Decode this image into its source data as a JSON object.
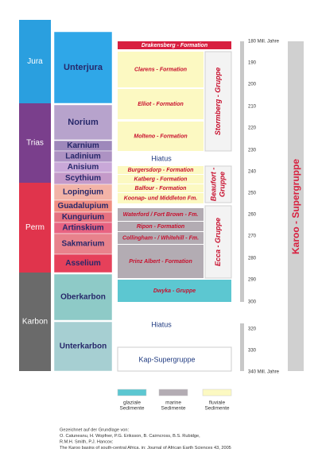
{
  "periods": [
    "Jura",
    "Trias",
    "Perm",
    "Karbon"
  ],
  "stages": [
    "Unterjura",
    "Norium",
    "Karnium",
    "Ladinium",
    "Anisium",
    "Scythium",
    "Lopingium",
    "Guadalupium",
    "Kungurium",
    "Artinskium",
    "Sakmarium",
    "Asselium",
    "Oberkarbon",
    "Unterkarbon"
  ],
  "formations": [
    "Drakensberg - Formation",
    "Clarens - Formation",
    "Elliot - Formation",
    "Molteno - Formation",
    "Burgersdorp - Formation",
    "Katberg - Formation",
    "Balfour - Formation",
    "Koonap- und Middleton Fm.",
    "Waterford / Fort Brown - Fm.",
    "Ripon - Formation",
    "Collingham - / Whitehill - Fm.",
    "Prinz Albert - Formation",
    "Dwyka - Gruppe"
  ],
  "groups": [
    [
      "Stormberg - Gruppe"
    ],
    [
      "Beaufort -",
      "Gruppe"
    ],
    [
      "Ecca - Gruppe"
    ]
  ],
  "hiatus": [
    "Hiatus",
    "Hiatus"
  ],
  "kap_supergroup": "Kap-Supergruppe",
  "scale_ticks": [
    "180 Mill. Jahre",
    "190",
    "200",
    "210",
    "220",
    "230",
    "240",
    "250",
    "260",
    "270",
    "280",
    "290",
    "300",
    "320",
    "330",
    "340 Mill. Jahre"
  ],
  "karoo_supergroup": "Karoo - Supergruppe",
  "legend": [
    [
      "glaziale",
      "Sedimente"
    ],
    [
      "marine",
      "Sedimente"
    ],
    [
      "fluviale",
      "Sedimente"
    ]
  ],
  "footer": [
    "Gezeichnet auf der Grundlage von:",
    "O. Catuneanu, H. Wopfner, P.G. Eriksson, B. Cairncross, B.S. Rubidge,",
    "R.M.H. Smith, P.J. Hancox:",
    "The Karoo basins of south-central Africa. in: Journal of African Earth Sciences 43, 2005"
  ]
}
